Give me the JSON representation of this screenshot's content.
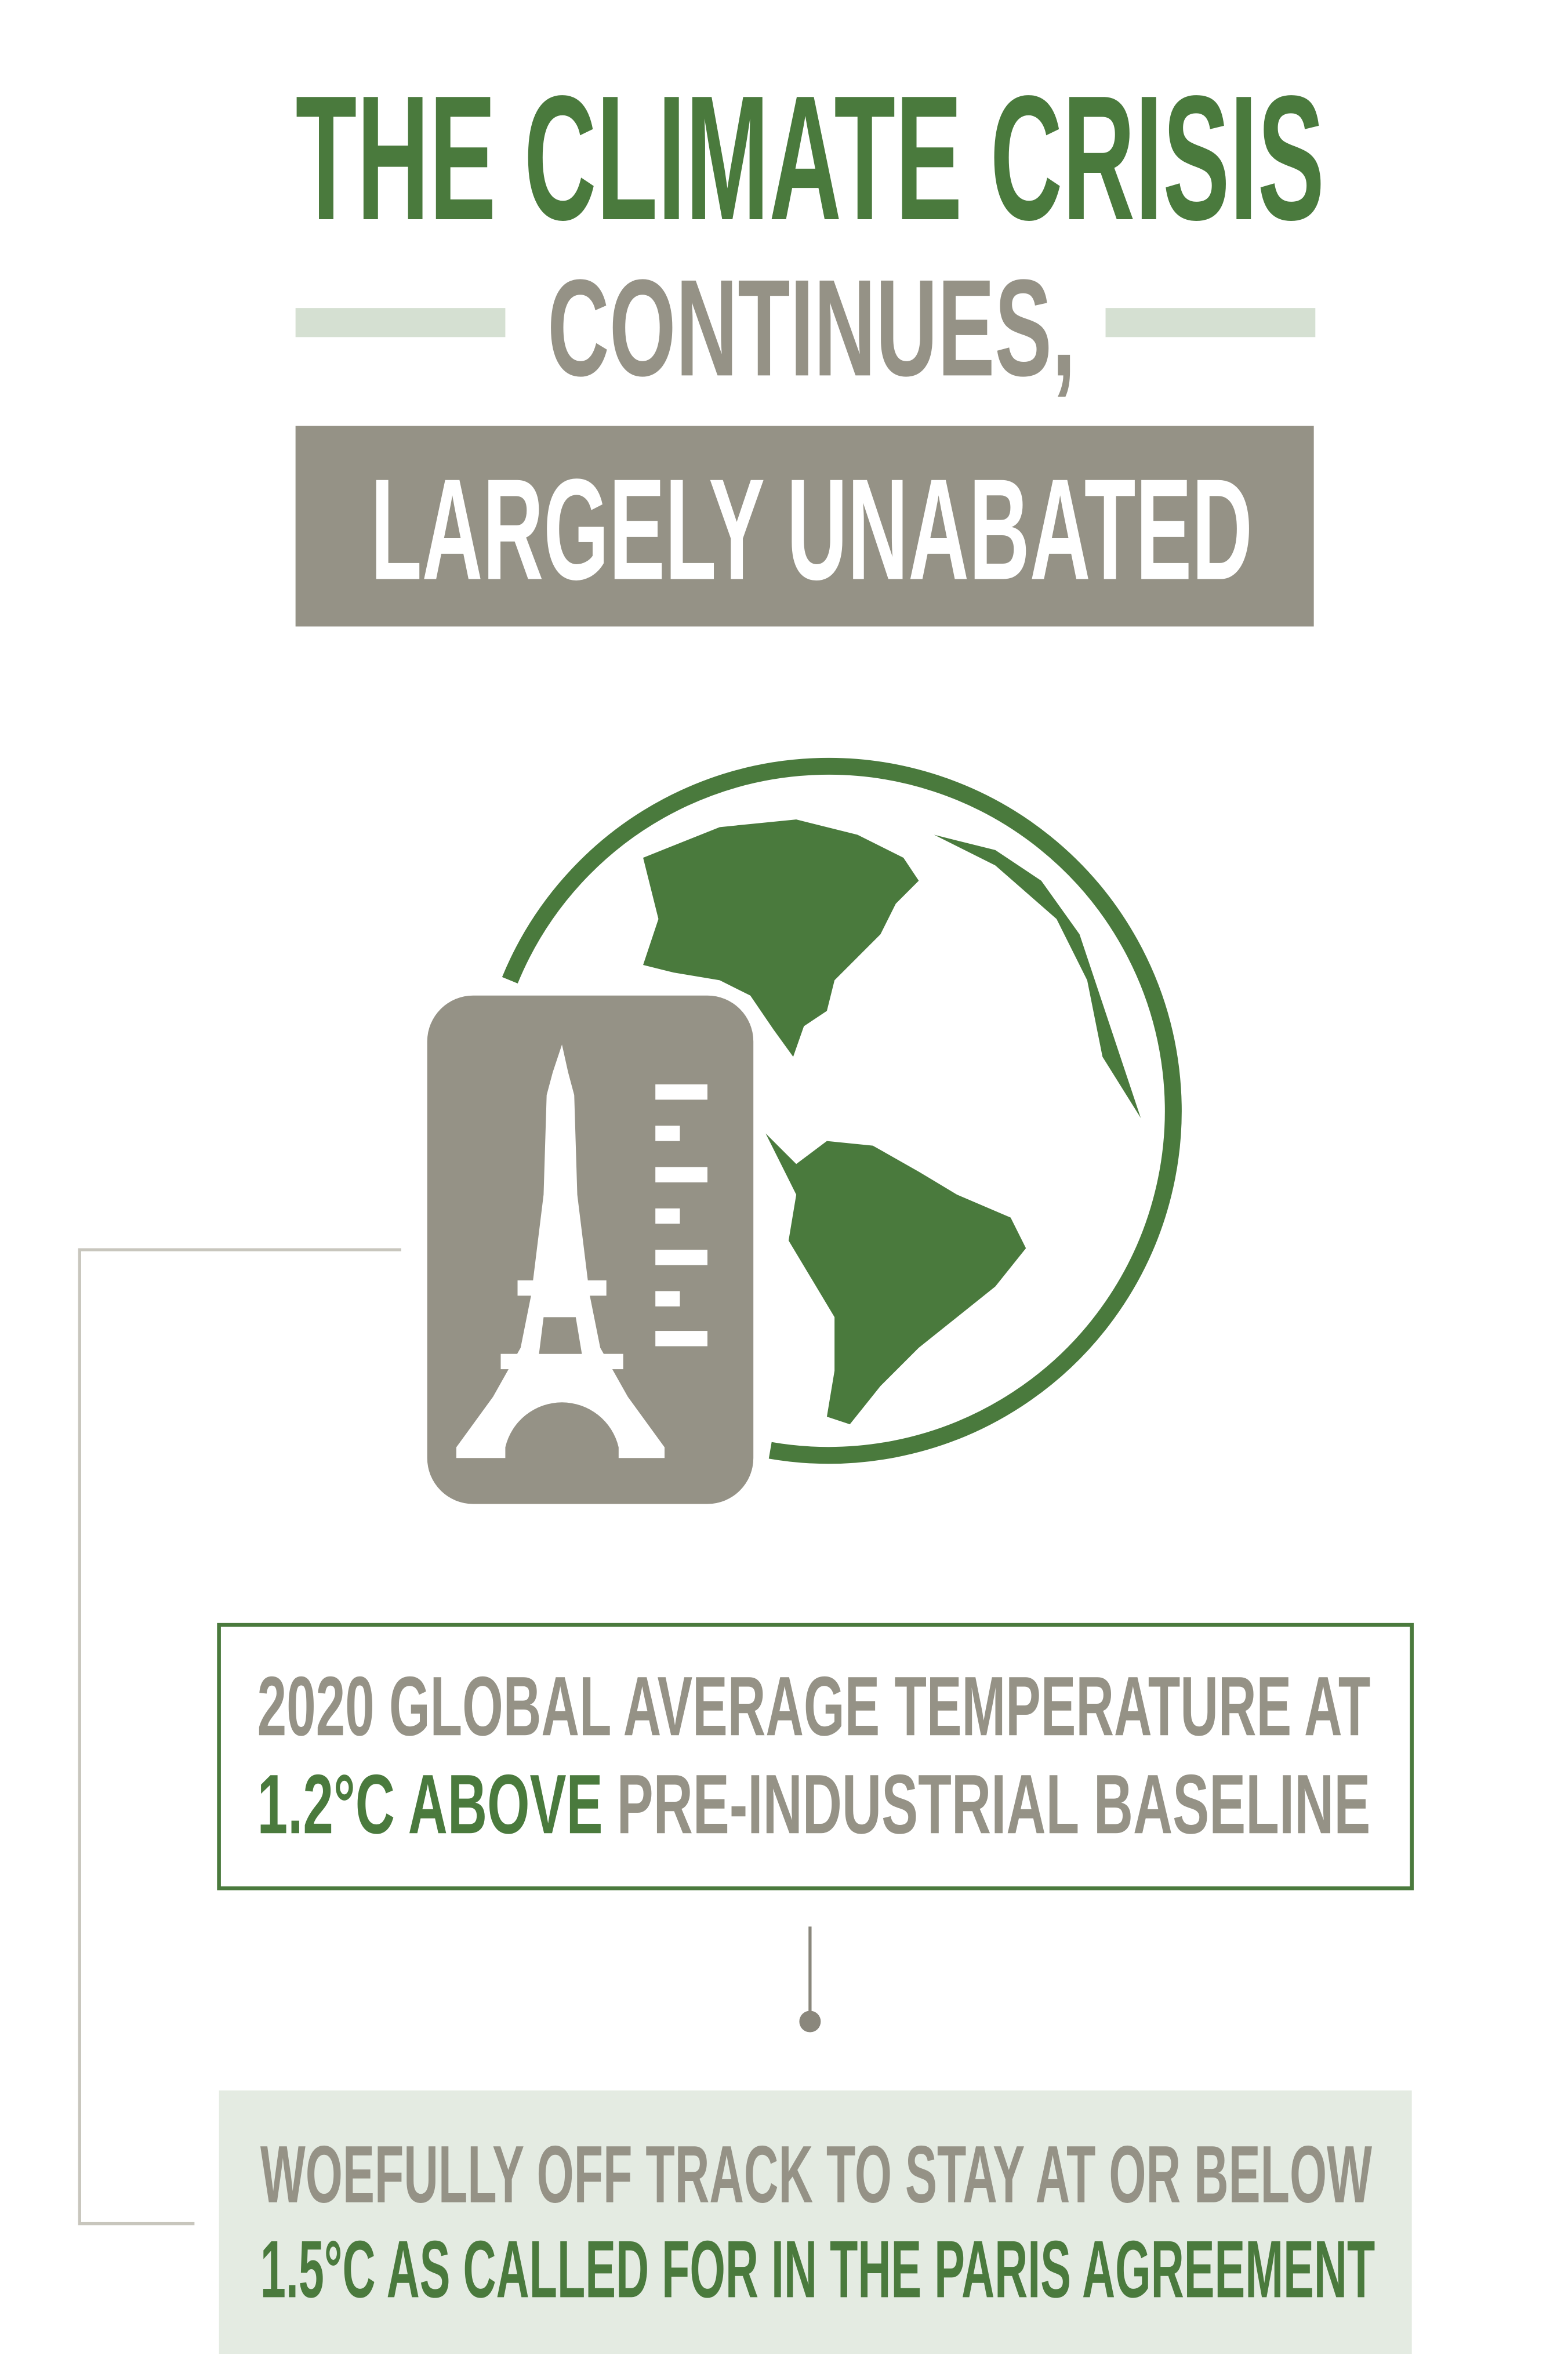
{
  "header": {
    "title": "THE CLIMATE CRISIS",
    "subtitle": "CONTINUES,",
    "banner": "LARGELY UNABATED"
  },
  "box1": {
    "line1": "2020 GLOBAL AVERAGE  TEMPERATURE AT",
    "line2_highlight": "1.2°C ABOVE",
    "line2_rest": "PRE-INDUSTRIAL BASELINE"
  },
  "box2": {
    "line1": "WOEFULLY OFF TRACK TO STAY AT OR BELOW",
    "line2": "1.5°C AS CALLED FOR IN THE PARIS AGREEMENT"
  }
}
